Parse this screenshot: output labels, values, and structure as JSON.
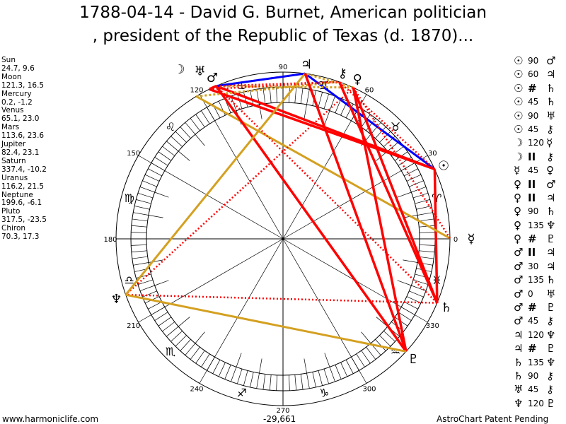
{
  "title": {
    "line1": "1788-04-14 - David G. Burnet, American politician",
    "line2": ", president of the Republic of Texas (d. 1870)..."
  },
  "planets": [
    {
      "name": "Sun",
      "coords": "24.7, 9.6",
      "lon": 24.7,
      "glyph": "☉"
    },
    {
      "name": "Moon",
      "coords": "121.3, 16.5",
      "lon": 121.3,
      "glyph": "☽"
    },
    {
      "name": "Mercury",
      "coords": "0.2, -1.2",
      "lon": 0.2,
      "glyph": "☿"
    },
    {
      "name": "Venus",
      "coords": "65.1, 23.0",
      "lon": 65.1,
      "glyph": "♀"
    },
    {
      "name": "Mars",
      "coords": "113.6, 23.6",
      "lon": 113.6,
      "glyph": "♂"
    },
    {
      "name": "Jupiter",
      "coords": "82.4, 23.1",
      "lon": 82.4,
      "glyph": "♃"
    },
    {
      "name": "Saturn",
      "coords": "337.4, -10.2",
      "lon": 337.4,
      "glyph": "♄"
    },
    {
      "name": "Uranus",
      "coords": "116.2, 21.5",
      "lon": 116.2,
      "glyph": "♅"
    },
    {
      "name": "Neptune",
      "coords": "199.6, -6.1",
      "lon": 199.6,
      "glyph": "♆"
    },
    {
      "name": "Pluto",
      "coords": "317.5, -23.5",
      "lon": 317.5,
      "glyph": "♇"
    },
    {
      "name": "Chiron",
      "coords": "70.3, 17.3",
      "lon": 70.3,
      "glyph": "⚷"
    }
  ],
  "aspects": [
    [
      "Sun",
      "90",
      "Mars"
    ],
    [
      "Sun",
      "60",
      "Jupiter"
    ],
    [
      "Sun",
      "#",
      "Saturn"
    ],
    [
      "Sun",
      "45",
      "Saturn"
    ],
    [
      "Sun",
      "90",
      "Uranus"
    ],
    [
      "Sun",
      "45",
      "Chiron"
    ],
    [
      "Moon",
      "120",
      "Mercury"
    ],
    [
      "Moon",
      "II",
      "Chiron"
    ],
    [
      "Mercury",
      "45",
      "Venus"
    ],
    [
      "Venus",
      "II",
      "Mars"
    ],
    [
      "Venus",
      "II",
      "Jupiter"
    ],
    [
      "Venus",
      "90",
      "Saturn"
    ],
    [
      "Venus",
      "135",
      "Neptune"
    ],
    [
      "Venus",
      "#",
      "Pluto"
    ],
    [
      "Mars",
      "II",
      "Jupiter"
    ],
    [
      "Mars",
      "30",
      "Jupiter"
    ],
    [
      "Mars",
      "135",
      "Saturn"
    ],
    [
      "Mars",
      "0",
      "Uranus"
    ],
    [
      "Mars",
      "#",
      "Pluto"
    ],
    [
      "Mars",
      "45",
      "Chiron"
    ],
    [
      "Jupiter",
      "120",
      "Neptune"
    ],
    [
      "Jupiter",
      "#",
      "Pluto"
    ],
    [
      "Saturn",
      "135",
      "Neptune"
    ],
    [
      "Saturn",
      "90",
      "Chiron"
    ],
    [
      "Uranus",
      "45",
      "Chiron"
    ],
    [
      "Neptune",
      "120",
      "Pluto"
    ]
  ],
  "degree_labels": [
    "0",
    "30",
    "60",
    "90",
    "120",
    "150",
    "180",
    "210",
    "240",
    "270",
    "300",
    "330"
  ],
  "signs": [
    "♈",
    "♉",
    "♊",
    "♋",
    "♌",
    "♍",
    "♎",
    "♏",
    "♐",
    "♑",
    "♒",
    "♓"
  ],
  "colors": {
    "hard": "#ff0000",
    "trine": "#d4a020",
    "sextile": "#0000ff"
  },
  "footer": {
    "site": "www.harmoniclife.com",
    "number": "-29,661",
    "notice": "AstroChart Patent Pending"
  }
}
